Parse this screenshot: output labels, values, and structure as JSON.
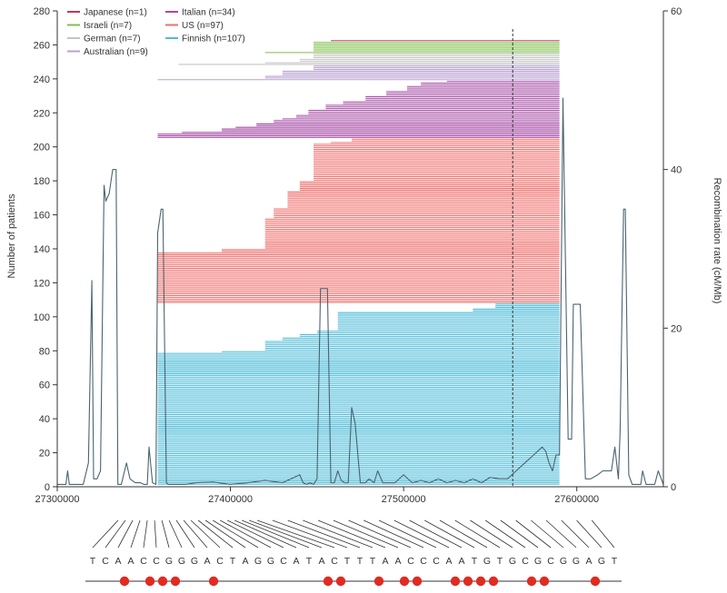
{
  "chart_data": {
    "type": "line",
    "title": "",
    "xlabel": "",
    "ylabel": "Number of patients",
    "y2label": "Recombination rate (cM/Mb)",
    "xlim": [
      27300000,
      27650000
    ],
    "ylim": [
      0,
      280
    ],
    "y2lim": [
      0,
      60
    ],
    "x_ticks": [
      27300000,
      27400000,
      27500000,
      27600000
    ],
    "x_tick_labels": [
      "27300000",
      "27400000",
      "27500000",
      "27600000"
    ],
    "y_ticks": [
      0,
      20,
      40,
      60,
      80,
      100,
      120,
      140,
      160,
      180,
      200,
      220,
      240,
      260,
      280
    ],
    "y_tick_labels": [
      "0",
      "20",
      "40",
      "60",
      "80",
      "100",
      "120",
      "140",
      "160",
      "180",
      "200",
      "220",
      "240",
      "260",
      "280"
    ],
    "y2_ticks": [
      0,
      20,
      40,
      60
    ],
    "y2_tick_labels": [
      "0",
      "20",
      "40",
      "60"
    ],
    "marker_position": 27563000,
    "legend": [
      {
        "name": "Japanese (n=1)",
        "color": "#c0395a"
      },
      {
        "name": "Israeli (n=7)",
        "color": "#7fbf4a"
      },
      {
        "name": "German (n=7)",
        "color": "#c4c4c4"
      },
      {
        "name": "Australian (n=9)",
        "color": "#b9a3d2"
      },
      {
        "name": "Italian (n=34)",
        "color": "#a64ca6"
      },
      {
        "name": "US (n=97)",
        "color": "#ef6f6c"
      },
      {
        "name": "Finnish (n=107)",
        "color": "#4dbcd8"
      }
    ],
    "haplotype_groups": [
      {
        "name": "Finnish",
        "color": "#4dbcd8",
        "start_row": 1,
        "end": 27590000,
        "segments": [
          {
            "rows": 78,
            "start": 27358000
          },
          {
            "rows": 1,
            "start": 27395000
          },
          {
            "rows": 1,
            "start": 27420000
          },
          {
            "rows": 5,
            "start": 27420000
          },
          {
            "rows": 2,
            "start": 27430000
          },
          {
            "rows": 2,
            "start": 27440000
          },
          {
            "rows": 2,
            "start": 27450000
          },
          {
            "rows": 11,
            "start": 27462000
          },
          {
            "rows": 2,
            "start": 27540000,
            "end": 27590000
          },
          {
            "rows": 3,
            "start": 27553000,
            "end": 27590000
          }
        ]
      },
      {
        "name": "US",
        "color": "#ef6f6c",
        "start_row": 108,
        "end": 27590000,
        "segments": [
          {
            "rows": 30,
            "start": 27358000
          },
          {
            "rows": 2,
            "start": 27395000
          },
          {
            "rows": 18,
            "start": 27420000
          },
          {
            "rows": 6,
            "start": 27425000
          },
          {
            "rows": 10,
            "start": 27433000
          },
          {
            "rows": 6,
            "start": 27440000
          },
          {
            "rows": 22,
            "start": 27448000
          },
          {
            "rows": 1,
            "start": 27458000
          },
          {
            "rows": 2,
            "start": 27470000
          }
        ]
      },
      {
        "name": "Italian",
        "color": "#a64ca6",
        "start_row": 205,
        "end": 27590000,
        "segments": [
          {
            "rows": 3,
            "start": 27358000
          },
          {
            "rows": 1,
            "start": 27372000
          },
          {
            "rows": 2,
            "start": 27395000
          },
          {
            "rows": 1,
            "start": 27403000
          },
          {
            "rows": 2,
            "start": 27415000
          },
          {
            "rows": 2,
            "start": 27425000
          },
          {
            "rows": 1,
            "start": 27430000
          },
          {
            "rows": 2,
            "start": 27438000
          },
          {
            "rows": 3,
            "start": 27445000
          },
          {
            "rows": 3,
            "start": 27455000
          },
          {
            "rows": 2,
            "start": 27465000
          },
          {
            "rows": 3,
            "start": 27478000
          },
          {
            "rows": 3,
            "start": 27490000
          },
          {
            "rows": 3,
            "start": 27502000
          },
          {
            "rows": 2,
            "start": 27510000
          },
          {
            "rows": 1,
            "start": 27525000
          }
        ]
      },
      {
        "name": "Australian",
        "color": "#b9a3d2",
        "start_row": 239,
        "end": 27590000,
        "segments": [
          {
            "rows": 1,
            "start": 27358000
          },
          {
            "rows": 2,
            "start": 27420000
          },
          {
            "rows": 3,
            "start": 27430000
          },
          {
            "rows": 3,
            "start": 27448000
          }
        ]
      },
      {
        "name": "German",
        "color": "#c4c4c4",
        "start_row": 248,
        "end": 27590000,
        "segments": [
          {
            "rows": 1,
            "start": 27370000
          },
          {
            "rows": 1,
            "start": 27420000
          },
          {
            "rows": 2,
            "start": 27440000
          },
          {
            "rows": 3,
            "start": 27448000
          }
        ]
      },
      {
        "name": "Israeli",
        "color": "#7fbf4a",
        "start_row": 255,
        "end": 27590000,
        "segments": [
          {
            "rows": 1,
            "start": 27420000
          },
          {
            "rows": 6,
            "start": 27448000
          }
        ]
      },
      {
        "name": "Japanese",
        "color": "#c0395a",
        "start_row": 262,
        "end": 27590000,
        "segments": [
          {
            "rows": 1,
            "start": 27458000
          }
        ]
      }
    ],
    "recombination_rate": {
      "name": "Recombination rate",
      "color": "#4a6470",
      "x": [
        27300000,
        27305000,
        27306000,
        27307000,
        27315000,
        27318000,
        27320000,
        27321000,
        27323000,
        27325000,
        27327000,
        27328000,
        27330000,
        27332000,
        27334000,
        27335000,
        27336000,
        27337000,
        27340000,
        27342000,
        27345000,
        27348000,
        27350000,
        27352000,
        27353000,
        27355000,
        27357000,
        27358000,
        27360000,
        27361000,
        27363000,
        27364000,
        27372000,
        27374000,
        27380000,
        27390000,
        27400000,
        27410000,
        27420000,
        27430000,
        27440000,
        27442000,
        27444000,
        27446000,
        27448000,
        27450000,
        27452000,
        27456000,
        27458000,
        27460000,
        27462000,
        27464000,
        27466000,
        27468000,
        27470000,
        27472000,
        27475000,
        27478000,
        27480000,
        27483000,
        27485000,
        27488000,
        27490000,
        27495000,
        27500000,
        27505000,
        27510000,
        27515000,
        27520000,
        27525000,
        27530000,
        27535000,
        27540000,
        27545000,
        27550000,
        27555000,
        27560000,
        27565000,
        27570000,
        27575000,
        27580000,
        27582000,
        27584000,
        27586000,
        27588000,
        27590000,
        27592000,
        27595000,
        27597000,
        27598000,
        27602000,
        27605000,
        27608000,
        27612000,
        27615000,
        27620000,
        27622000,
        27624000,
        27625000,
        27627000,
        27628000,
        27630000,
        27632000,
        27635000,
        27637000,
        27638000,
        27640000,
        27642000,
        27645000,
        27647000,
        27650000
      ],
      "y": [
        0.3,
        0.3,
        2,
        0.3,
        0.3,
        3,
        26,
        1,
        1,
        2,
        38,
        36,
        37,
        40,
        40,
        0.3,
        0.3,
        0.3,
        3,
        1,
        0.5,
        0.5,
        0.3,
        0.3,
        5,
        0.5,
        0.3,
        32,
        35,
        35,
        0.5,
        0.3,
        0.3,
        0.3,
        0.5,
        0.6,
        0.3,
        0.5,
        0.8,
        0.5,
        1.5,
        0.5,
        0.3,
        0.5,
        0.3,
        1,
        25,
        25,
        0.5,
        0.5,
        2,
        0.8,
        0.5,
        0.5,
        10,
        8,
        0.5,
        0.5,
        1,
        0.5,
        2,
        0.5,
        0.5,
        0.5,
        1.5,
        0.5,
        0.8,
        0.5,
        1,
        0.5,
        0.8,
        0.5,
        1,
        0.5,
        1.2,
        1,
        1,
        2,
        3,
        4,
        5,
        4.5,
        3,
        2,
        4,
        4,
        49,
        6,
        6,
        23,
        23,
        1,
        1,
        1.5,
        2,
        2,
        5,
        1,
        7,
        35,
        35,
        1.5,
        0.3,
        0.3,
        0.3,
        2,
        0.3,
        0.3,
        0.3,
        2,
        0.3
      ]
    },
    "sequence": {
      "label": "nucleotide sequence",
      "bases": [
        "T",
        "C",
        "A",
        "A",
        "C",
        "C",
        "G",
        "G",
        "G",
        "A",
        "C",
        "T",
        "A",
        "G",
        "G",
        "C",
        "A",
        "T",
        "A",
        "C",
        "T",
        "T",
        "T",
        "A",
        "A",
        "C",
        "C",
        "C",
        "A",
        "A",
        "T",
        "G",
        "T",
        "G",
        "C",
        "G",
        "C",
        "G",
        "G",
        "A",
        "G",
        "T"
      ],
      "variant_indices": [
        2,
        4,
        5,
        6,
        9,
        18,
        19,
        22,
        24,
        25,
        28,
        29,
        30,
        31,
        34,
        35,
        39
      ],
      "marker_color": "#e02b22"
    }
  }
}
